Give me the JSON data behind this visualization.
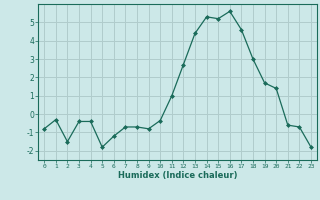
{
  "x": [
    0,
    1,
    2,
    3,
    4,
    5,
    6,
    7,
    8,
    9,
    10,
    11,
    12,
    13,
    14,
    15,
    16,
    17,
    18,
    19,
    20,
    21,
    22,
    23
  ],
  "y": [
    -0.8,
    -0.3,
    -1.5,
    -0.4,
    -0.4,
    -1.8,
    -1.2,
    -0.7,
    -0.7,
    -0.8,
    -0.35,
    1.0,
    2.7,
    4.4,
    5.3,
    5.2,
    5.6,
    4.6,
    3.0,
    1.7,
    1.4,
    -0.6,
    -0.7,
    -1.8
  ],
  "line_color": "#1a6b5a",
  "marker": "D",
  "marker_size": 2.0,
  "bg_color": "#cce8e8",
  "grid_color": "#b0cccc",
  "xlabel": "Humidex (Indice chaleur)",
  "xlim": [
    -0.5,
    23.5
  ],
  "ylim": [
    -2.5,
    6.0
  ],
  "yticks": [
    -2,
    -1,
    0,
    1,
    2,
    3,
    4,
    5
  ],
  "xtick_labels": [
    "0",
    "1",
    "2",
    "3",
    "4",
    "5",
    "6",
    "7",
    "8",
    "9",
    "10",
    "11",
    "12",
    "13",
    "14",
    "15",
    "16",
    "17",
    "18",
    "19",
    "20",
    "21",
    "22",
    "23"
  ]
}
